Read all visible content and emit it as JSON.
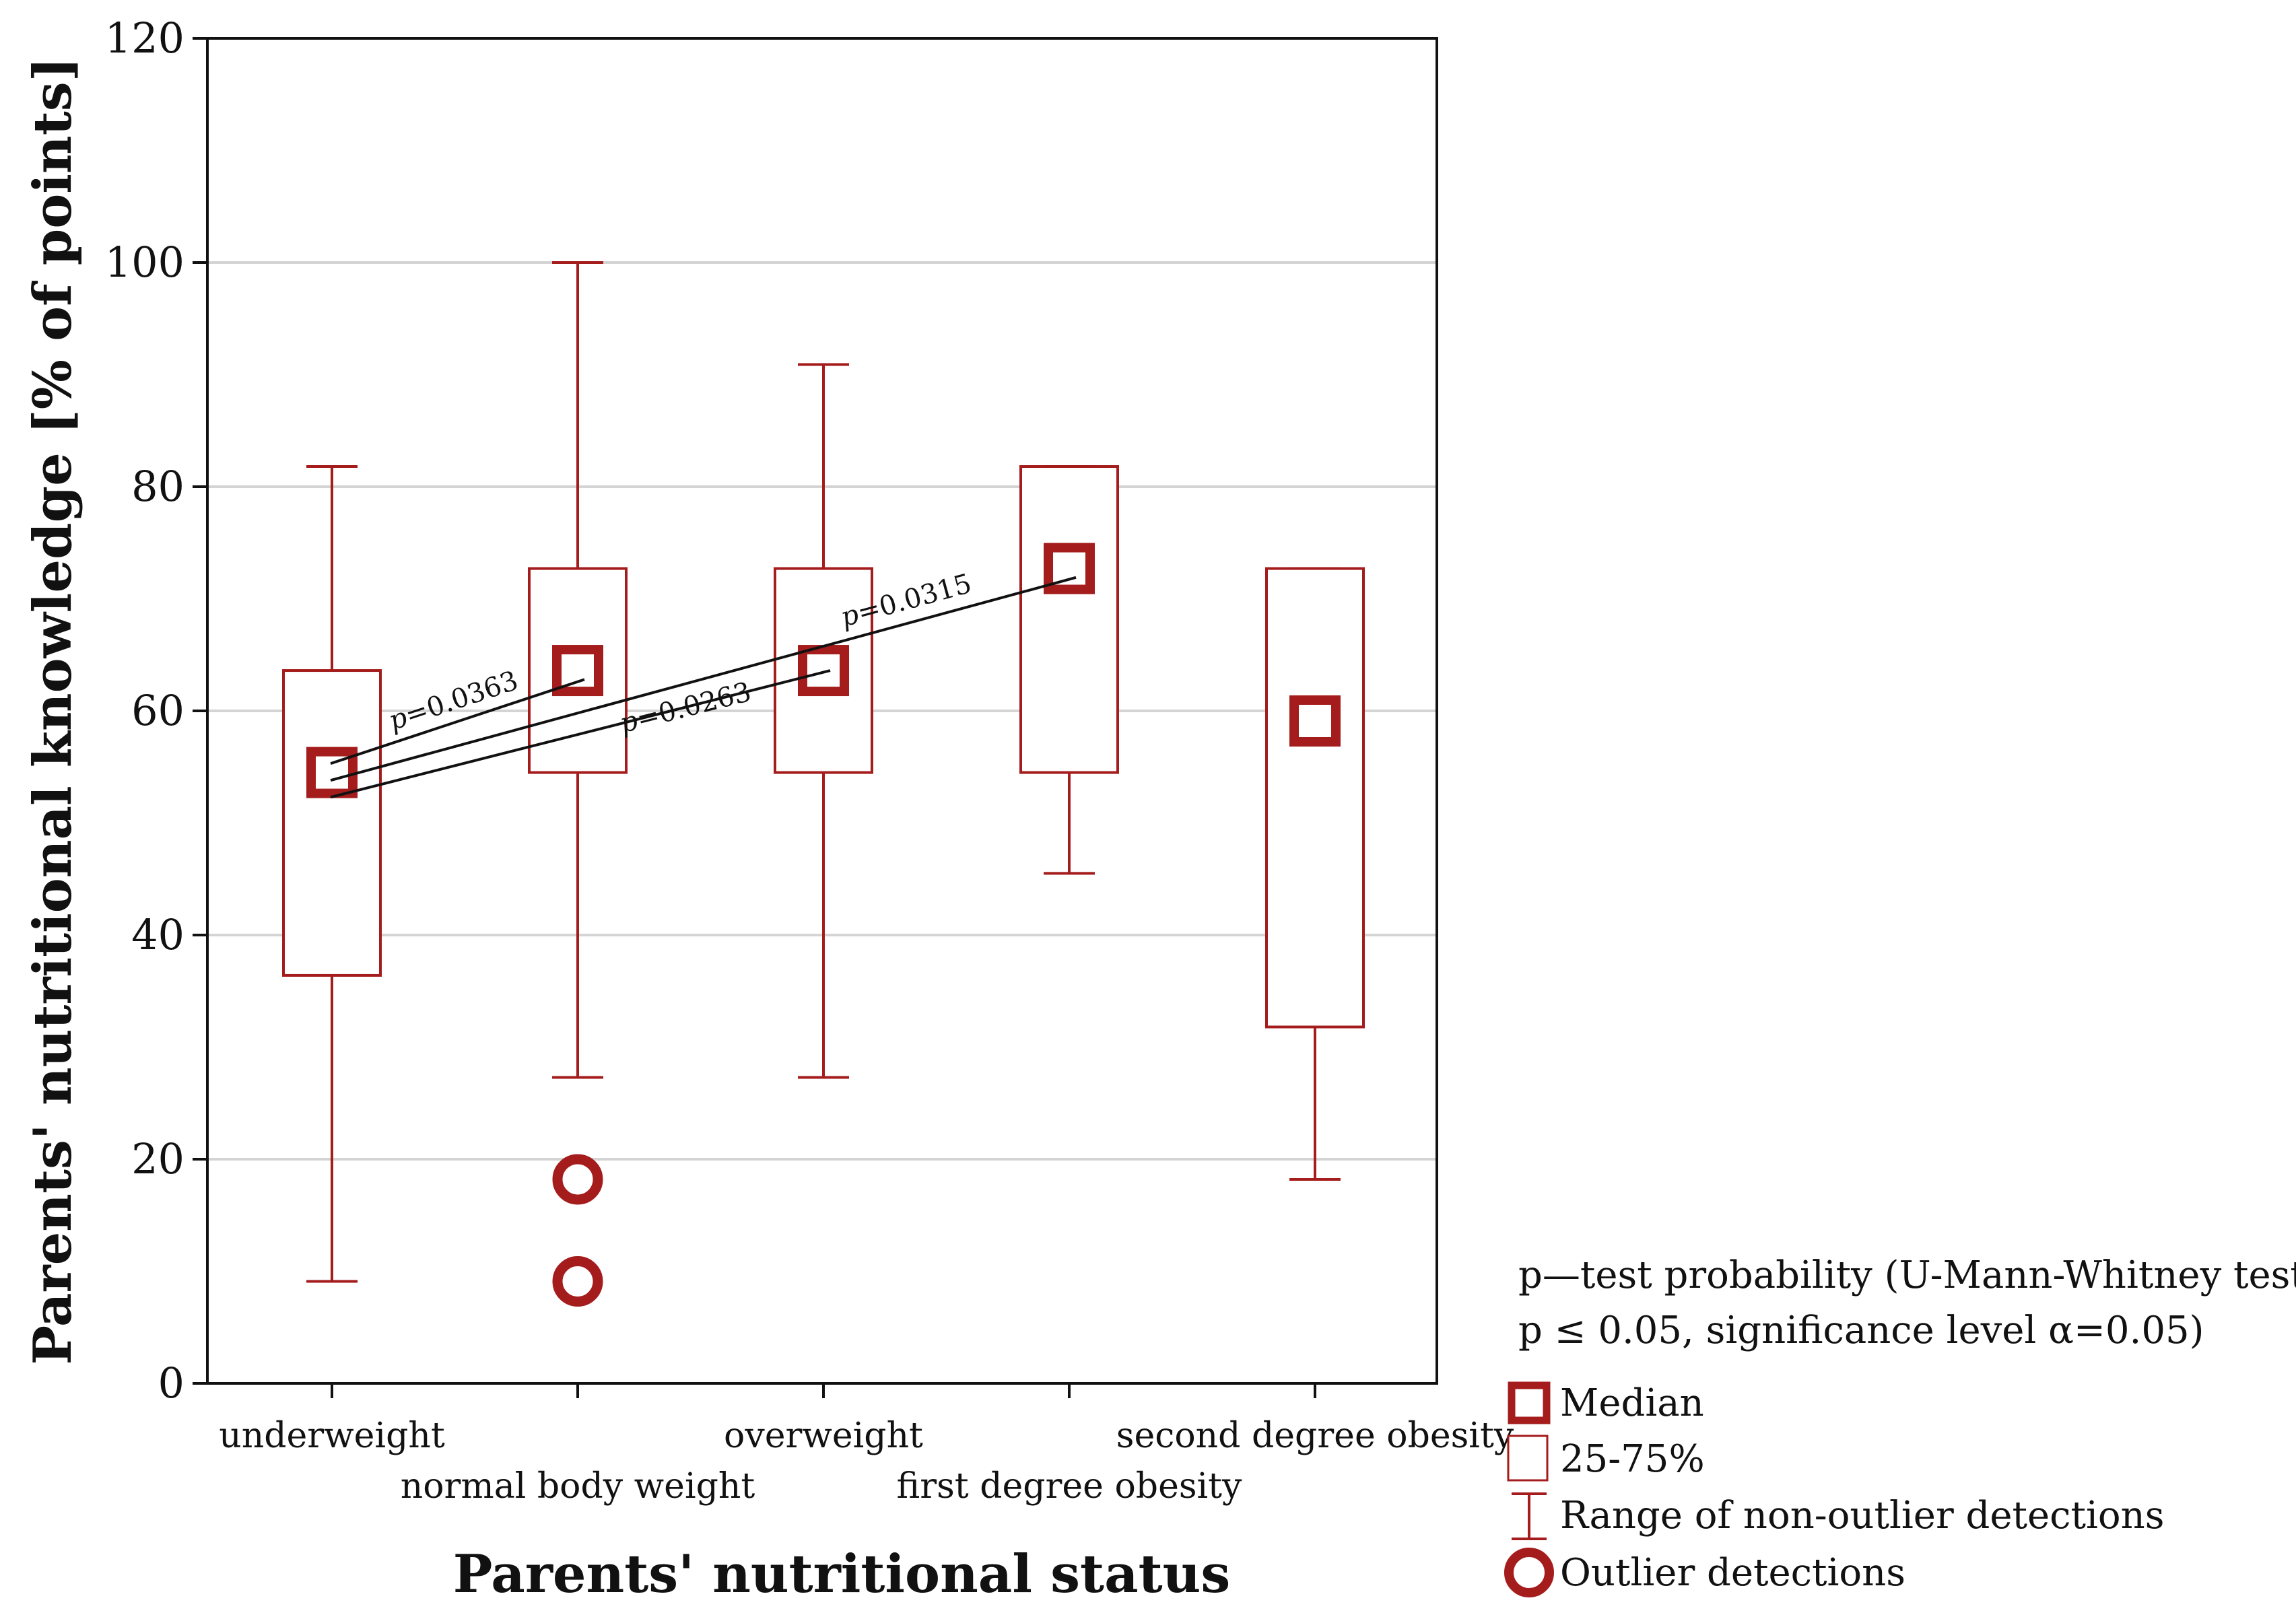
{
  "chart_data": {
    "type": "boxplot",
    "xlabel": "Parents' nutritional status",
    "ylabel": "Parents' nutritional knowledge [% of points]",
    "ylim": [
      0,
      120
    ],
    "yticks": [
      0,
      20,
      40,
      60,
      80,
      100,
      120
    ],
    "grid": "horizontal",
    "color": "#a51c1c",
    "categories": [
      "underweight",
      "normal body weight",
      "overweight",
      "first degree obesity",
      "second degree obesity"
    ],
    "series": [
      {
        "name": "underweight",
        "median": 54.5,
        "q1": 36.4,
        "q3": 63.6,
        "whisker_low": 9.1,
        "whisker_high": 81.8,
        "outliers": []
      },
      {
        "name": "normal body weight",
        "median": 63.6,
        "q1": 54.5,
        "q3": 72.7,
        "whisker_low": 27.3,
        "whisker_high": 100.0,
        "outliers": [
          18.2,
          9.1
        ]
      },
      {
        "name": "overweight",
        "median": 63.6,
        "q1": 54.5,
        "q3": 72.7,
        "whisker_low": 27.3,
        "whisker_high": 90.9,
        "outliers": []
      },
      {
        "name": "first degree obesity",
        "median": 72.7,
        "q1": 54.5,
        "q3": 81.8,
        "whisker_low": 45.5,
        "whisker_high": 81.8,
        "outliers": []
      },
      {
        "name": "second degree obesity",
        "median": 59.1,
        "q1": 31.8,
        "q3": 72.7,
        "whisker_low": 18.2,
        "whisker_high": 72.7,
        "outliers": []
      }
    ],
    "annotations": [
      {
        "from": 0,
        "to": 1,
        "p_symbol": "p",
        "p_value": "=0.0363",
        "from_y": 55.3,
        "to_y": 62.8
      },
      {
        "from": 0,
        "to": 2,
        "p_symbol": "p",
        "p_value": "=0.0263",
        "from_y": 52.3,
        "to_y": 63.6
      },
      {
        "from": 0,
        "to": 3,
        "p_symbol": "p",
        "p_value": "=0.0315",
        "from_y": 53.8,
        "to_y": 71.9
      }
    ],
    "legend": {
      "note_line1": "p—test probability (U-Mann-Whitney test,",
      "note_line2": "p ≤ 0.05, significance level α=0.05)",
      "items": [
        {
          "icon": "median-square-icon",
          "label": "Median"
        },
        {
          "icon": "box-icon",
          "label": "25-75%"
        },
        {
          "icon": "whisker-icon",
          "label": "Range of non-outlier detections"
        },
        {
          "icon": "outlier-circle-icon",
          "label": "Outlier detections"
        }
      ]
    }
  }
}
